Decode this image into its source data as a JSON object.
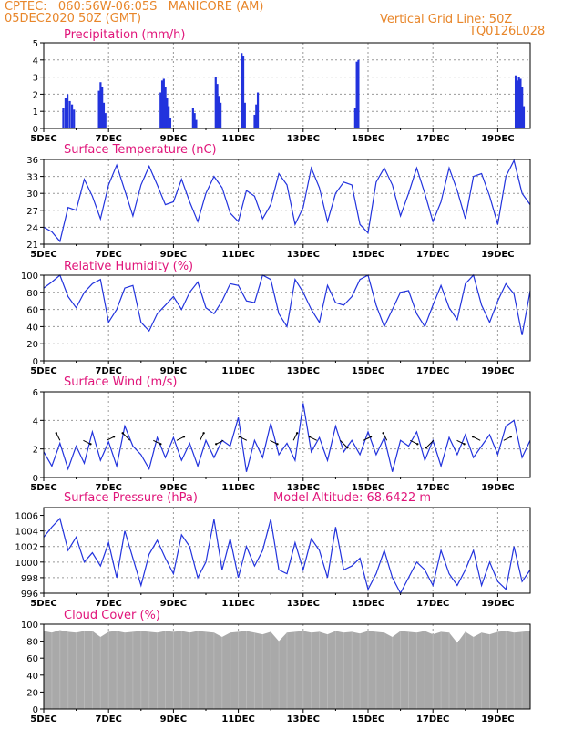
{
  "header": {
    "line1": "CPTEC:   060:56W-06:05S   MANICORE (AM)",
    "line2": "05DEC2020 50Z (GMT)",
    "vertical_grid": "Vertical Grid Line: 50Z",
    "code": "TQ0126L028"
  },
  "colors": {
    "header": "#e8862a",
    "title": "#e0157a",
    "line": "#2233dd",
    "cloud": "#a9a9a9"
  },
  "chart_data": [
    {
      "id": "precip",
      "type": "bar",
      "title": "Precipitation (mm/h)",
      "ylim": [
        0,
        5
      ],
      "yticks": [
        0,
        1,
        2,
        3,
        4,
        5
      ],
      "xlim_days": [
        0,
        15
      ],
      "xticks": [
        "5DEC",
        "7DEC",
        "9DEC",
        "11DEC",
        "13DEC",
        "15DEC",
        "17DEC",
        "19DEC"
      ],
      "x_days": [
        0.6,
        0.67,
        0.73,
        0.8,
        0.87,
        0.93,
        1.7,
        1.75,
        1.8,
        1.85,
        1.9,
        3.6,
        3.65,
        3.7,
        3.75,
        3.8,
        3.85,
        3.9,
        4.6,
        4.65,
        4.7,
        5.3,
        5.35,
        5.4,
        5.45,
        6.1,
        6.15,
        6.2,
        6.5,
        6.55,
        6.6,
        9.6,
        9.65,
        9.7,
        14.55,
        14.6,
        14.65,
        14.7,
        14.75,
        14.8
      ],
      "values": [
        1.2,
        1.8,
        2.0,
        1.6,
        1.4,
        1.1,
        2.2,
        2.7,
        2.4,
        1.5,
        0.9,
        2.1,
        2.8,
        2.9,
        2.4,
        1.8,
        1.3,
        0.6,
        1.2,
        0.9,
        0.5,
        3.0,
        2.6,
        1.9,
        1.5,
        4.4,
        4.2,
        1.5,
        0.8,
        1.4,
        2.1,
        1.2,
        3.9,
        4.0,
        3.1,
        2.8,
        3.0,
        2.9,
        2.4,
        1.3
      ]
    },
    {
      "id": "temp",
      "type": "line",
      "title": "Surface Temperature (nC)",
      "ylim": [
        21,
        36
      ],
      "yticks": [
        21,
        24,
        27,
        30,
        33,
        36
      ],
      "xlim_days": [
        0,
        15
      ],
      "xticks": [
        "5DEC",
        "7DEC",
        "9DEC",
        "11DEC",
        "13DEC",
        "15DEC",
        "17DEC",
        "19DEC"
      ],
      "x_days": [
        0,
        0.25,
        0.5,
        0.75,
        1,
        1.25,
        1.5,
        1.75,
        2,
        2.25,
        2.5,
        2.75,
        3,
        3.25,
        3.5,
        3.75,
        4,
        4.25,
        4.5,
        4.75,
        5,
        5.25,
        5.5,
        5.75,
        6,
        6.25,
        6.5,
        6.75,
        7,
        7.25,
        7.5,
        7.75,
        8,
        8.25,
        8.5,
        8.75,
        9,
        9.25,
        9.5,
        9.75,
        10,
        10.25,
        10.5,
        10.75,
        11,
        11.25,
        11.5,
        11.75,
        12,
        12.25,
        12.5,
        12.75,
        13,
        13.25,
        13.5,
        13.75,
        14,
        14.25,
        14.5,
        14.75,
        15
      ],
      "values": [
        24.0,
        23.2,
        21.5,
        27.5,
        27.0,
        32.5,
        29.5,
        25.5,
        31.5,
        35.0,
        30.5,
        26.0,
        31.5,
        34.8,
        31.5,
        28.0,
        28.5,
        32.5,
        28.5,
        25.0,
        30.0,
        33.0,
        31.0,
        26.5,
        25.0,
        30.5,
        29.5,
        25.5,
        28.0,
        33.5,
        31.5,
        24.5,
        27.5,
        34.5,
        31.0,
        25.0,
        30.0,
        32.0,
        31.5,
        24.5,
        23.0,
        32.0,
        34.5,
        31.5,
        26.0,
        30.0,
        34.5,
        30.0,
        25.0,
        28.5,
        34.5,
        30.5,
        25.5,
        33.0,
        33.5,
        29.5,
        24.5,
        33.0,
        35.8,
        30.0,
        28.0
      ]
    },
    {
      "id": "rh",
      "type": "line",
      "title": "Relative Humidity (%)",
      "ylim": [
        0,
        100
      ],
      "yticks": [
        0,
        20,
        40,
        60,
        80,
        100
      ],
      "xlim_days": [
        0,
        15
      ],
      "xticks": [
        "5DEC",
        "7DEC",
        "9DEC",
        "11DEC",
        "13DEC",
        "15DEC",
        "17DEC",
        "19DEC"
      ],
      "x_days": [
        0,
        0.25,
        0.5,
        0.75,
        1,
        1.25,
        1.5,
        1.75,
        2,
        2.25,
        2.5,
        2.75,
        3,
        3.25,
        3.5,
        3.75,
        4,
        4.25,
        4.5,
        4.75,
        5,
        5.25,
        5.5,
        5.75,
        6,
        6.25,
        6.5,
        6.75,
        7,
        7.25,
        7.5,
        7.75,
        8,
        8.25,
        8.5,
        8.75,
        9,
        9.25,
        9.5,
        9.75,
        10,
        10.25,
        10.5,
        10.75,
        11,
        11.25,
        11.5,
        11.75,
        12,
        12.25,
        12.5,
        12.75,
        13,
        13.25,
        13.5,
        13.75,
        14,
        14.25,
        14.5,
        14.75,
        15
      ],
      "values": [
        85,
        92,
        100,
        75,
        62,
        80,
        90,
        95,
        45,
        60,
        85,
        88,
        45,
        35,
        55,
        65,
        75,
        60,
        80,
        92,
        62,
        55,
        70,
        90,
        88,
        70,
        68,
        100,
        95,
        55,
        40,
        95,
        80,
        60,
        45,
        88,
        68,
        65,
        75,
        95,
        100,
        65,
        40,
        60,
        80,
        82,
        55,
        40,
        65,
        88,
        62,
        48,
        90,
        100,
        65,
        45,
        70,
        90,
        78,
        30,
        82
      ]
    },
    {
      "id": "wind",
      "type": "line",
      "title": "Surface Wind (m/s)",
      "ylim": [
        0,
        6
      ],
      "yticks": [
        0,
        2,
        4,
        6
      ],
      "xlim_days": [
        0,
        15
      ],
      "xticks": [
        "5DEC",
        "7DEC",
        "9DEC",
        "11DEC",
        "13DEC",
        "15DEC",
        "17DEC",
        "19DEC"
      ],
      "x_days": [
        0,
        0.25,
        0.5,
        0.75,
        1,
        1.25,
        1.5,
        1.75,
        2,
        2.25,
        2.5,
        2.75,
        3,
        3.25,
        3.5,
        3.75,
        4,
        4.25,
        4.5,
        4.75,
        5,
        5.25,
        5.5,
        5.75,
        6,
        6.25,
        6.5,
        6.75,
        7,
        7.25,
        7.5,
        7.75,
        8,
        8.25,
        8.5,
        8.75,
        9,
        9.25,
        9.5,
        9.75,
        10,
        10.25,
        10.5,
        10.75,
        11,
        11.25,
        11.5,
        11.75,
        12,
        12.25,
        12.5,
        12.75,
        13,
        13.25,
        13.5,
        13.75,
        14,
        14.25,
        14.5,
        14.75,
        15
      ],
      "values": [
        1.8,
        0.8,
        2.4,
        0.6,
        2.2,
        1.0,
        3.2,
        1.2,
        2.5,
        0.8,
        3.6,
        2.2,
        1.6,
        0.6,
        2.8,
        1.4,
        2.8,
        1.2,
        2.4,
        0.8,
        2.6,
        1.4,
        2.6,
        2.2,
        4.2,
        0.4,
        2.6,
        1.4,
        3.8,
        1.6,
        2.4,
        1.2,
        5.2,
        1.8,
        2.8,
        1.2,
        3.6,
        1.8,
        2.6,
        1.6,
        3.2,
        1.6,
        2.8,
        0.4,
        2.6,
        2.2,
        3.2,
        1.2,
        2.6,
        0.8,
        2.8,
        1.6,
        3.0,
        1.4,
        2.2,
        3.0,
        1.6,
        3.6,
        4.0,
        1.4,
        2.6
      ]
    },
    {
      "id": "pressure",
      "type": "line",
      "title": "Surface Pressure (hPa)",
      "annotation": "Model Altitude: 68.6422 m",
      "ylim": [
        996,
        1007
      ],
      "yticks": [
        996,
        998,
        1000,
        1002,
        1004,
        1006
      ],
      "xlim_days": [
        0,
        15
      ],
      "xticks": [
        "5DEC",
        "7DEC",
        "9DEC",
        "11DEC",
        "13DEC",
        "15DEC",
        "17DEC",
        "19DEC"
      ],
      "x_days": [
        0,
        0.25,
        0.5,
        0.75,
        1,
        1.25,
        1.5,
        1.75,
        2,
        2.25,
        2.5,
        2.75,
        3,
        3.25,
        3.5,
        3.75,
        4,
        4.25,
        4.5,
        4.75,
        5,
        5.25,
        5.5,
        5.75,
        6,
        6.25,
        6.5,
        6.75,
        7,
        7.25,
        7.5,
        7.75,
        8,
        8.25,
        8.5,
        8.75,
        9,
        9.25,
        9.5,
        9.75,
        10,
        10.25,
        10.5,
        10.75,
        11,
        11.25,
        11.5,
        11.75,
        12,
        12.25,
        12.5,
        12.75,
        13,
        13.25,
        13.5,
        13.75,
        14,
        14.25,
        14.5,
        14.75,
        15
      ],
      "values": [
        1003.2,
        1004.5,
        1005.6,
        1001.5,
        1003.2,
        1000.0,
        1001.2,
        999.5,
        1002.5,
        998.0,
        1004.0,
        1000.5,
        997.0,
        1001.0,
        1002.8,
        1000.5,
        998.5,
        1003.5,
        1002.0,
        998.0,
        1000.0,
        1005.5,
        999.0,
        1003.0,
        998.0,
        1002.0,
        999.5,
        1001.5,
        1005.5,
        999.0,
        998.5,
        1002.5,
        999.0,
        1003.0,
        1001.5,
        998.0,
        1004.5,
        999.0,
        999.5,
        1000.5,
        996.5,
        998.5,
        1001.5,
        998.0,
        996.0,
        998.0,
        1000.0,
        999.0,
        997.0,
        1001.5,
        998.5,
        997.0,
        999.0,
        1001.5,
        997.0,
        1000.0,
        997.5,
        996.5,
        1002.0,
        997.5,
        999.0
      ]
    },
    {
      "id": "cloud",
      "type": "area",
      "title": "Cloud Cover (%)",
      "ylim": [
        0,
        100
      ],
      "yticks": [
        0,
        20,
        40,
        60,
        80,
        100
      ],
      "xlim_days": [
        0,
        15
      ],
      "xticks": [
        "5DEC",
        "7DEC",
        "9DEC",
        "11DEC",
        "13DEC",
        "15DEC",
        "17DEC",
        "19DEC"
      ],
      "x_days": [
        0,
        0.25,
        0.5,
        0.75,
        1,
        1.25,
        1.5,
        1.75,
        2,
        2.25,
        2.5,
        2.75,
        3,
        3.25,
        3.5,
        3.75,
        4,
        4.25,
        4.5,
        4.75,
        5,
        5.25,
        5.5,
        5.75,
        6,
        6.25,
        6.5,
        6.75,
        7,
        7.25,
        7.5,
        7.75,
        8,
        8.25,
        8.5,
        8.75,
        9,
        9.25,
        9.5,
        9.75,
        10,
        10.25,
        10.5,
        10.75,
        11,
        11.25,
        11.5,
        11.75,
        12,
        12.25,
        12.5,
        12.75,
        13,
        13.25,
        13.5,
        13.75,
        14,
        14.25,
        14.5,
        14.75,
        15
      ],
      "values": [
        92,
        90,
        93,
        91,
        90,
        92,
        92,
        85,
        91,
        92,
        90,
        91,
        92,
        91,
        90,
        92,
        91,
        92,
        90,
        92,
        91,
        90,
        85,
        90,
        91,
        92,
        90,
        88,
        91,
        80,
        90,
        91,
        92,
        90,
        91,
        88,
        92,
        90,
        91,
        89,
        92,
        91,
        90,
        85,
        92,
        91,
        90,
        92,
        88,
        91,
        90,
        78,
        91,
        85,
        90,
        88,
        91,
        92,
        90,
        91,
        92
      ]
    }
  ]
}
